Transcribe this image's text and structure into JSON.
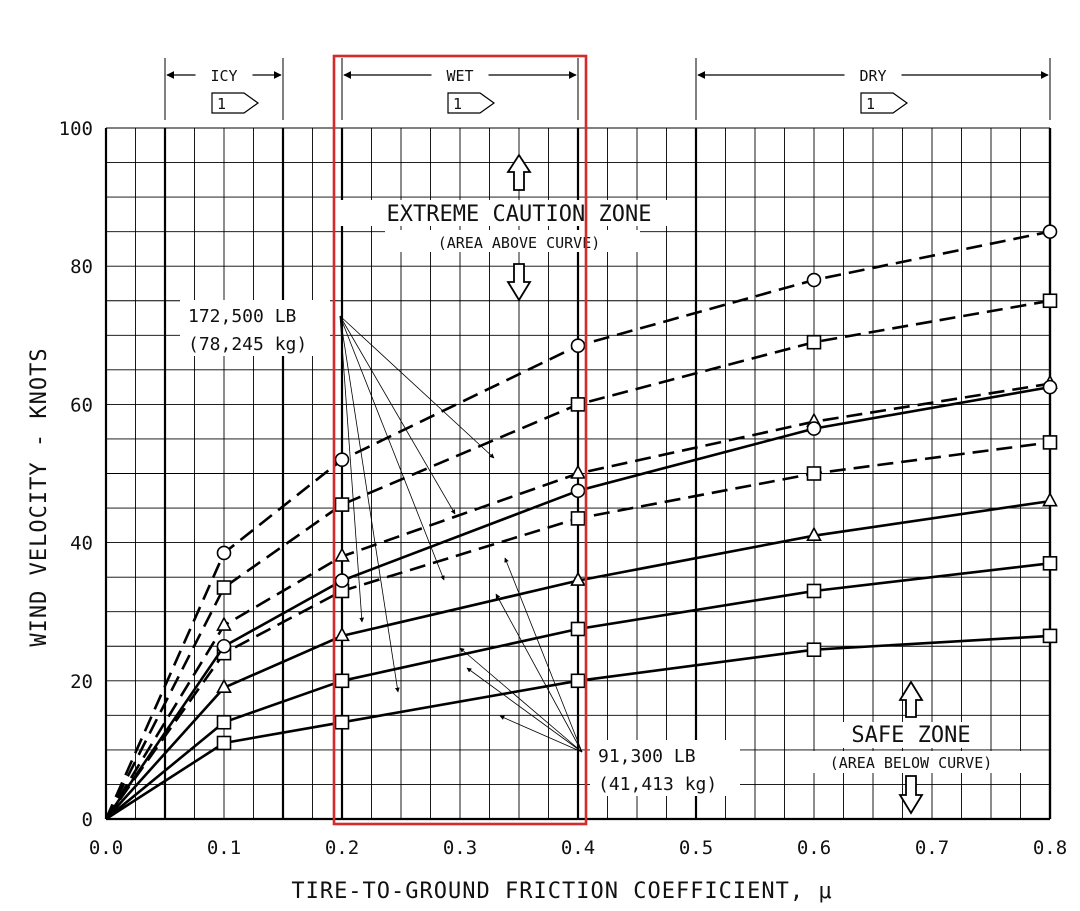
{
  "chart_data": {
    "type": "line",
    "xlabel": "TIRE-TO-GROUND FRICTION COEFFICIENT, μ",
    "ylabel": "WIND VELOCITY - KNOTS",
    "xlim": [
      0.0,
      0.8
    ],
    "ylim": [
      0,
      100
    ],
    "x_ticks": [
      "0.0",
      "0.1",
      "0.2",
      "0.3",
      "0.4",
      "0.5",
      "0.6",
      "0.7",
      "0.8"
    ],
    "y_ticks": [
      "0",
      "20",
      "40",
      "60",
      "80",
      "100"
    ],
    "grid": true,
    "zones": [
      {
        "name": "ICY",
        "note": "1",
        "from": 0.05,
        "to": 0.15
      },
      {
        "name": "WET",
        "note": "1",
        "from": 0.2,
        "to": 0.4
      },
      {
        "name": "DRY",
        "note": "1",
        "from": 0.5,
        "to": 0.8
      }
    ],
    "highlight_box": {
      "from": 0.2,
      "to": 0.4,
      "color": "#d42a2a"
    },
    "annotations": {
      "caution_title": "EXTREME CAUTION ZONE",
      "caution_sub": "(AREA ABOVE CURVE)",
      "safe_title": "SAFE ZONE",
      "safe_sub": "(AREA BELOW CURVE)",
      "heavy_weight_lb": "172,500 LB",
      "heavy_weight_kg": "(78,245 kg)",
      "light_weight_lb": "91,300 LB",
      "light_weight_kg": "(41,413 kg)"
    },
    "series": [
      {
        "style": "dashed",
        "marker": "circle",
        "x": [
          0.0,
          0.1,
          0.2,
          0.4,
          0.6,
          0.8
        ],
        "y": [
          0,
          38.5,
          52,
          68.5,
          78,
          85
        ]
      },
      {
        "style": "dashed",
        "marker": "square",
        "x": [
          0.0,
          0.1,
          0.2,
          0.4,
          0.6,
          0.8
        ],
        "y": [
          0,
          33.5,
          45.5,
          60,
          69,
          75
        ]
      },
      {
        "style": "dashed",
        "marker": "triangle",
        "x": [
          0.0,
          0.1,
          0.2,
          0.4,
          0.6,
          0.8
        ],
        "y": [
          0,
          28,
          38,
          50,
          57.5,
          63
        ]
      },
      {
        "style": "dashed",
        "marker": "square",
        "x": [
          0.0,
          0.1,
          0.2,
          0.4,
          0.6,
          0.8
        ],
        "y": [
          0,
          24,
          33,
          43.5,
          50,
          54.5
        ]
      },
      {
        "style": "solid",
        "marker": "circle",
        "x": [
          0.0,
          0.1,
          0.2,
          0.4,
          0.6,
          0.8
        ],
        "y": [
          0,
          25,
          34.5,
          47.5,
          56.5,
          62.5
        ]
      },
      {
        "style": "solid",
        "marker": "triangle",
        "x": [
          0.0,
          0.1,
          0.2,
          0.4,
          0.6,
          0.8
        ],
        "y": [
          0,
          19,
          26.5,
          34.5,
          41,
          46
        ]
      },
      {
        "style": "solid",
        "marker": "square",
        "x": [
          0.0,
          0.1,
          0.2,
          0.4,
          0.6,
          0.8
        ],
        "y": [
          0,
          14,
          20,
          27.5,
          33,
          37
        ]
      },
      {
        "style": "solid",
        "marker": "square",
        "x": [
          0.0,
          0.1,
          0.2,
          0.4,
          0.6,
          0.8
        ],
        "y": [
          0,
          11,
          14,
          20,
          24.5,
          26.5
        ]
      }
    ]
  }
}
